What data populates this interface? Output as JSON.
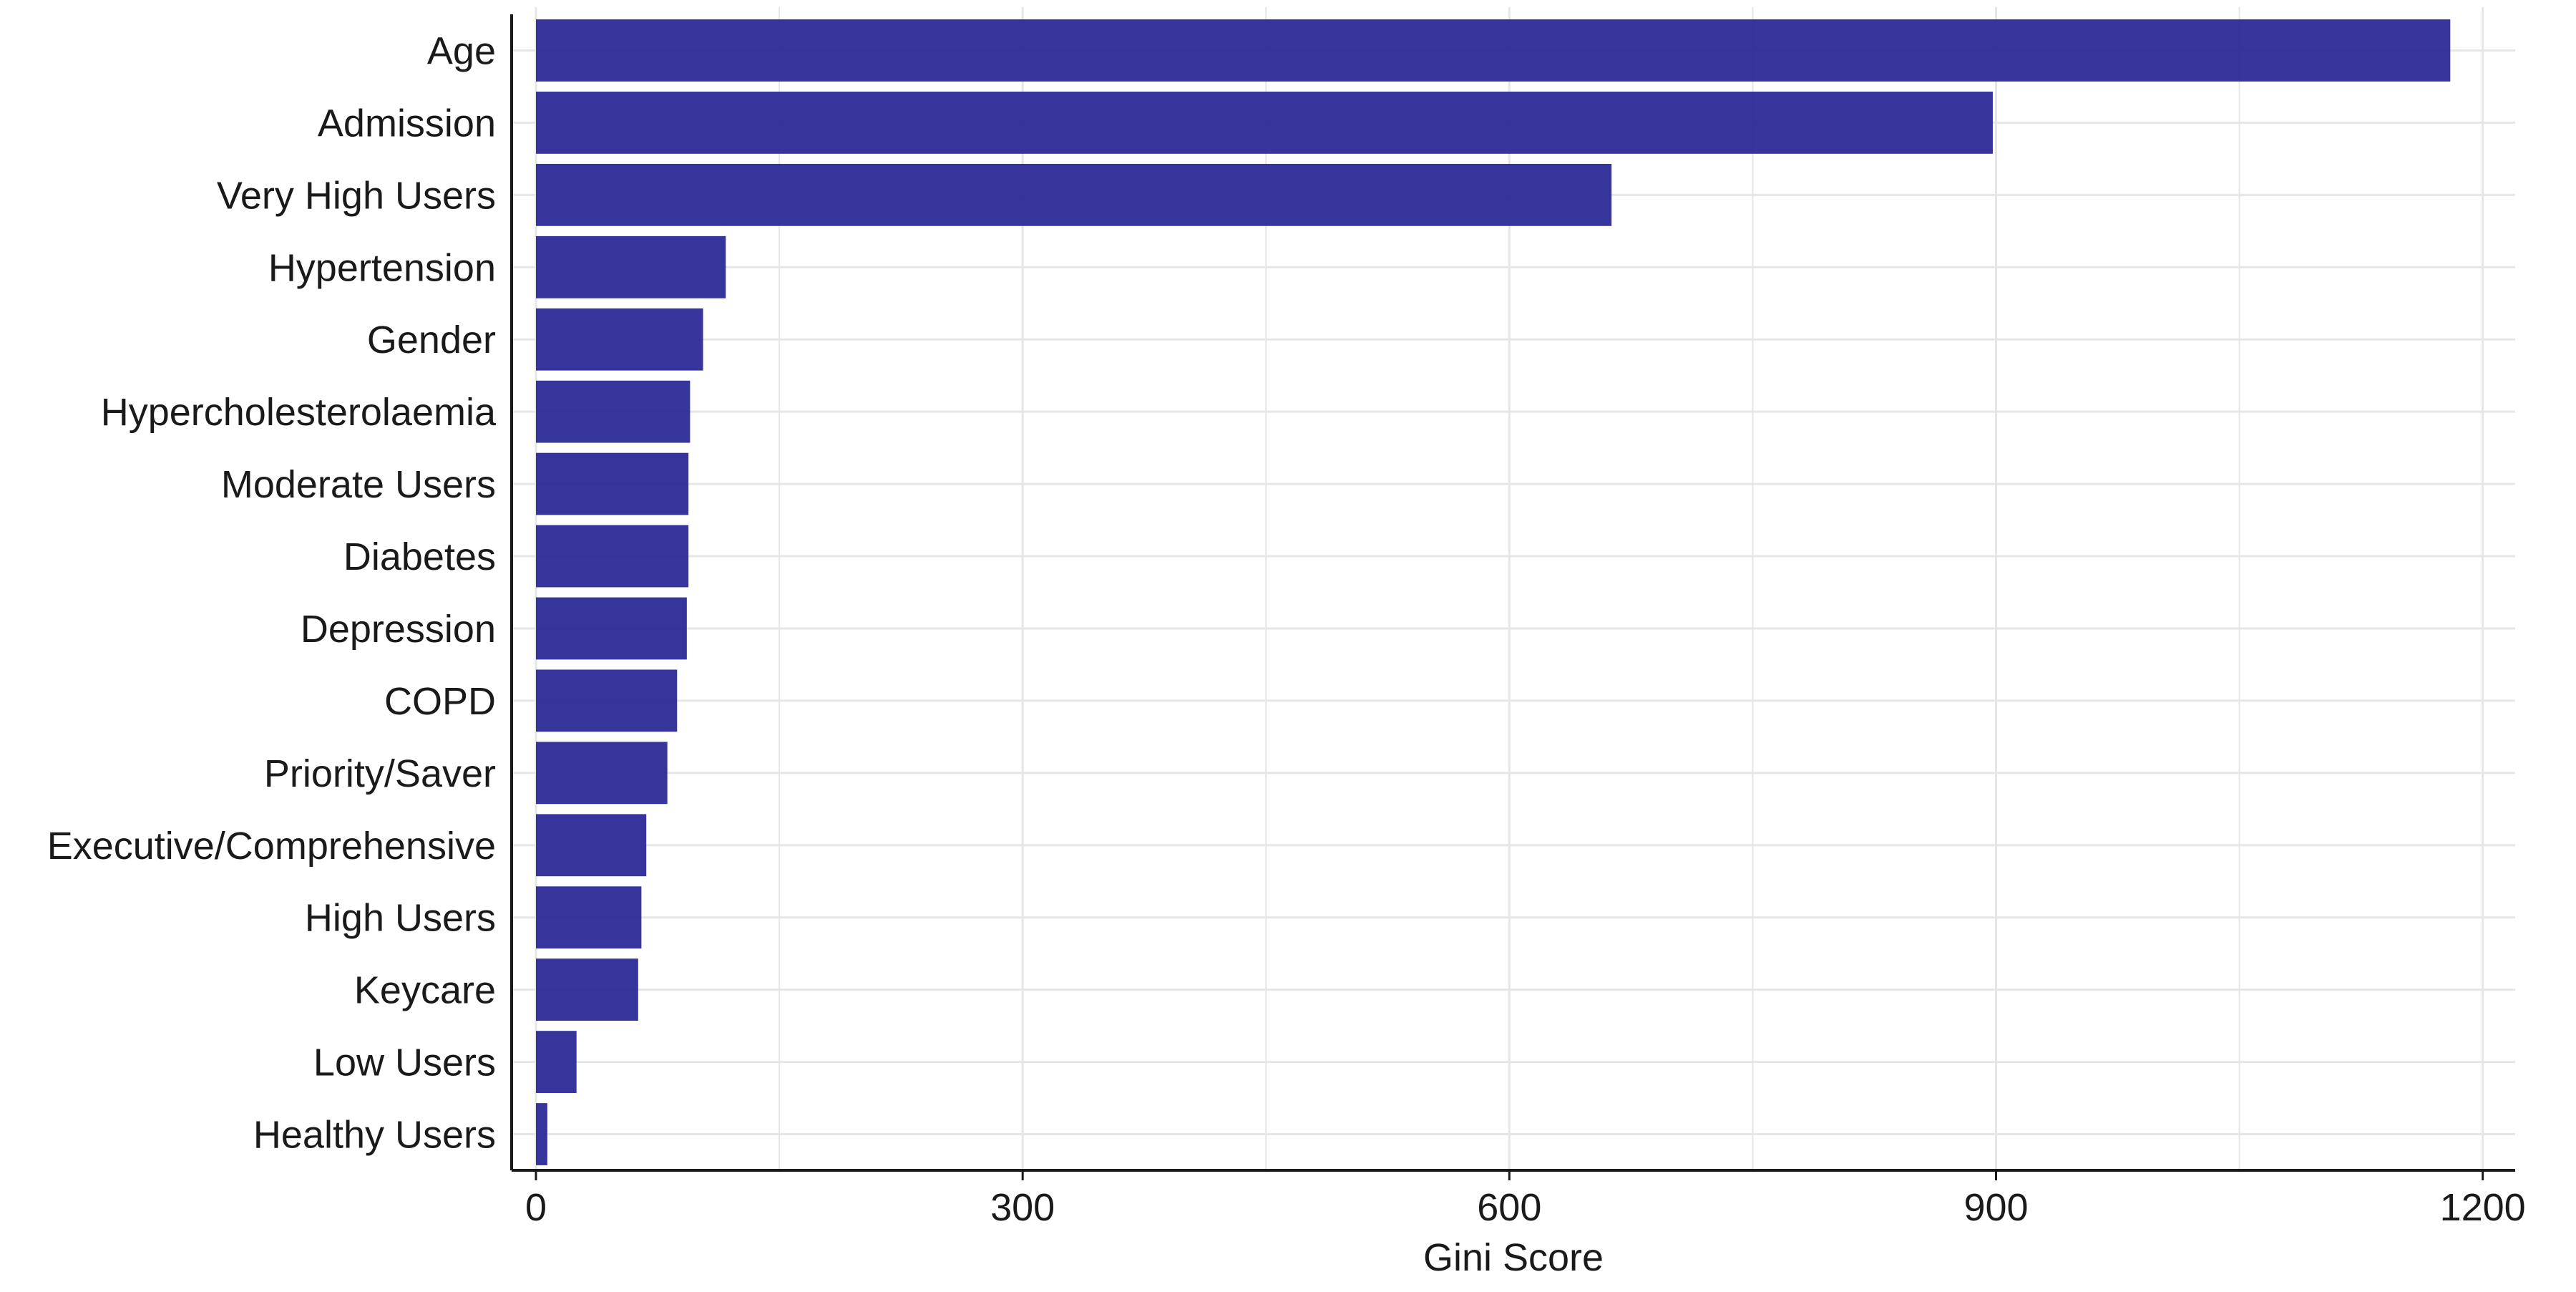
{
  "chart_data": {
    "type": "bar",
    "orientation": "horizontal",
    "title": "",
    "xlabel": "Gini Score",
    "ylabel": "",
    "xlim": [
      -15,
      1220
    ],
    "xticks": [
      0,
      300,
      600,
      900,
      1200
    ],
    "xtick_labels": [
      "0",
      "300",
      "600",
      "900",
      "1200"
    ],
    "grid": true,
    "legend": "none",
    "bar_color": "#2b2a96",
    "categories": [
      "Age",
      "Admission",
      "Very High Users",
      "Hypertension",
      "Gender",
      "Hypercholesterolaemia",
      "Moderate Users",
      "Diabetes",
      "Depression",
      "COPD",
      "Priority/Saver",
      "Executive/Comprehensive",
      "High Users",
      "Keycare",
      "Low Users",
      "Healthy Users"
    ],
    "values": [
      1180,
      898,
      663,
      117,
      103,
      95,
      94,
      94,
      93,
      87,
      81,
      68,
      65,
      63,
      25,
      7
    ]
  }
}
